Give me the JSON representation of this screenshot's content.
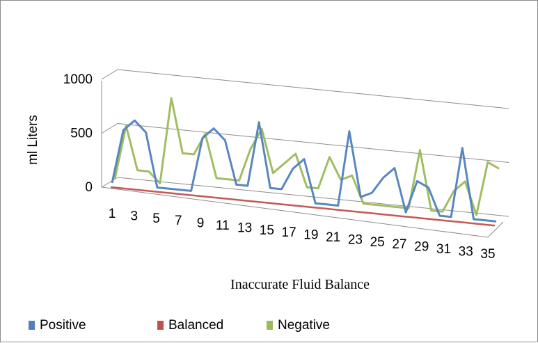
{
  "chart_data": {
    "type": "line",
    "subtype": "3d-line",
    "xlabel": "Inaccurate Fluid Balance",
    "ylabel": "ml Liters",
    "ylim": [
      0,
      1000
    ],
    "yticks": [
      "0",
      "500",
      "1000"
    ],
    "xticks": [
      "1",
      "3",
      "5",
      "7",
      "9",
      "11",
      "13",
      "15",
      "17",
      "19",
      "21",
      "23",
      "25",
      "27",
      "29",
      "31",
      "33",
      "35"
    ],
    "categories": [
      1,
      2,
      3,
      4,
      5,
      6,
      7,
      8,
      9,
      10,
      11,
      12,
      13,
      14,
      15,
      16,
      17,
      18,
      19,
      20,
      21,
      22,
      23,
      24,
      25,
      26,
      27,
      28,
      29,
      30,
      31,
      32,
      33,
      34,
      35
    ],
    "grid": true,
    "legend_position": "bottom",
    "series": [
      {
        "name": "Positive",
        "color": "#4f81bd",
        "values": [
          0,
          500,
          600,
          500,
          0,
          0,
          0,
          0,
          500,
          600,
          500,
          100,
          100,
          700,
          100,
          100,
          300,
          400,
          0,
          0,
          0,
          700,
          100,
          150,
          300,
          400,
          0,
          300,
          250,
          0,
          0,
          650,
          0,
          0,
          0
        ]
      },
      {
        "name": "Balanced",
        "color": "#c0504d",
        "values": [
          0,
          0,
          0,
          0,
          0,
          0,
          0,
          0,
          0,
          0,
          0,
          0,
          0,
          0,
          0,
          0,
          0,
          0,
          0,
          0,
          0,
          0,
          0,
          0,
          0,
          0,
          0,
          0,
          0,
          0,
          0,
          0,
          0,
          0,
          0
        ]
      },
      {
        "name": "Negative",
        "color": "#9bbb59",
        "values": [
          0,
          500,
          100,
          100,
          0,
          800,
          300,
          300,
          500,
          100,
          100,
          100,
          400,
          600,
          200,
          300,
          400,
          100,
          100,
          400,
          200,
          250,
          0,
          0,
          0,
          0,
          0,
          550,
          0,
          0,
          200,
          300,
          0,
          500,
          450
        ]
      }
    ]
  }
}
